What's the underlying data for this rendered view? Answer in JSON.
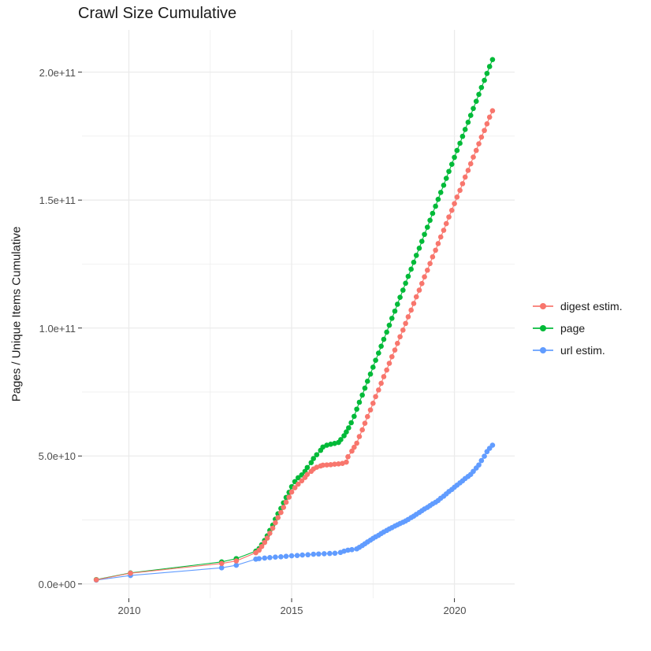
{
  "page_title": "Crawl Size Cumulative",
  "chart_data": {
    "type": "scatter",
    "title": "Crawl Size Cumulative",
    "xlabel": "",
    "ylabel": "Pages / Unique Items Cumulative",
    "legend_position": "right",
    "grid": true,
    "background": "#ffffff",
    "gridline_color": "#ebebeb",
    "tick_color": "#333333",
    "value_unit": "1e9 pages/items (values below are billions)",
    "x_domain": [
      2008.56,
      2021.85
    ],
    "y_domain_e9": [
      -5.6,
      216.5
    ],
    "x_tick_labels": [
      "2010",
      "2015",
      "2020"
    ],
    "x_tick_years": [
      2010,
      2015,
      2020
    ],
    "x_minor_years": [
      2012.5,
      2017.5
    ],
    "y_tick_labels": [
      "0.0e+00",
      "5.0e+10",
      "1.0e+11",
      "1.5e+11",
      "2.0e+11"
    ],
    "y_tick_values_e9": [
      0,
      50,
      100,
      150,
      200
    ],
    "y_minor_values_e9": [
      25,
      75,
      125,
      175
    ],
    "series": [
      {
        "name": "digest estim.",
        "color": "#F8766D",
        "points": [
          [
            2009.0,
            1.6
          ],
          [
            2010.05,
            4.2
          ],
          [
            2012.85,
            8.0
          ],
          [
            2013.3,
            9.0
          ],
          [
            2013.9,
            12.2
          ],
          [
            2014.0,
            13.2
          ],
          [
            2014.08,
            14.6
          ],
          [
            2014.17,
            16.2
          ],
          [
            2014.25,
            17.9
          ],
          [
            2014.33,
            19.8
          ],
          [
            2014.42,
            21.8
          ],
          [
            2014.5,
            23.9
          ],
          [
            2014.58,
            25.9
          ],
          [
            2014.67,
            27.9
          ],
          [
            2014.75,
            29.9
          ],
          [
            2014.83,
            31.9
          ],
          [
            2014.92,
            33.9
          ],
          [
            2015.0,
            35.9
          ],
          [
            2015.1,
            37.6
          ],
          [
            2015.2,
            39.0
          ],
          [
            2015.31,
            40.3
          ],
          [
            2015.41,
            41.6
          ],
          [
            2015.48,
            42.8
          ],
          [
            2015.6,
            44.0
          ],
          [
            2015.67,
            44.9
          ],
          [
            2015.77,
            45.6
          ],
          [
            2015.89,
            46.1
          ],
          [
            2015.96,
            46.4
          ],
          [
            2016.08,
            46.5
          ],
          [
            2016.2,
            46.6
          ],
          [
            2016.32,
            46.8
          ],
          [
            2016.44,
            46.9
          ],
          [
            2016.56,
            47.1
          ],
          [
            2016.68,
            47.6
          ],
          [
            2016.73,
            49.7
          ],
          [
            2016.85,
            51.9
          ],
          [
            2016.92,
            53.4
          ],
          [
            2017.0,
            55.0
          ],
          [
            2017.08,
            57.6
          ],
          [
            2017.17,
            60.2
          ],
          [
            2017.25,
            62.8
          ],
          [
            2017.33,
            65.4
          ],
          [
            2017.42,
            68.0
          ],
          [
            2017.5,
            70.6
          ],
          [
            2017.58,
            73.2
          ],
          [
            2017.67,
            75.8
          ],
          [
            2017.75,
            78.4
          ],
          [
            2017.83,
            81.0
          ],
          [
            2017.92,
            83.6
          ],
          [
            2018.0,
            86.2
          ],
          [
            2018.08,
            88.8
          ],
          [
            2018.17,
            91.4
          ],
          [
            2018.25,
            94.0
          ],
          [
            2018.33,
            96.6
          ],
          [
            2018.42,
            99.2
          ],
          [
            2018.5,
            101.8
          ],
          [
            2018.58,
            104.4
          ],
          [
            2018.67,
            107.0
          ],
          [
            2018.75,
            109.6
          ],
          [
            2018.83,
            112.2
          ],
          [
            2018.92,
            114.8
          ],
          [
            2019.0,
            117.4
          ],
          [
            2019.08,
            120.0
          ],
          [
            2019.17,
            122.6
          ],
          [
            2019.25,
            125.2
          ],
          [
            2019.33,
            127.8
          ],
          [
            2019.42,
            130.4
          ],
          [
            2019.5,
            133.0
          ],
          [
            2019.58,
            135.6
          ],
          [
            2019.67,
            138.2
          ],
          [
            2019.75,
            140.8
          ],
          [
            2019.83,
            143.4
          ],
          [
            2019.92,
            146.0
          ],
          [
            2020.0,
            148.6
          ],
          [
            2020.08,
            151.2
          ],
          [
            2020.17,
            153.8
          ],
          [
            2020.25,
            156.4
          ],
          [
            2020.33,
            159.0
          ],
          [
            2020.42,
            161.6
          ],
          [
            2020.5,
            164.2
          ],
          [
            2020.58,
            166.8
          ],
          [
            2020.67,
            169.4
          ],
          [
            2020.75,
            172.0
          ],
          [
            2020.83,
            174.6
          ],
          [
            2020.92,
            177.2
          ],
          [
            2021.0,
            179.8
          ],
          [
            2021.08,
            182.4
          ],
          [
            2021.17,
            184.9
          ]
        ]
      },
      {
        "name": "page",
        "color": "#00BA38",
        "points": [
          [
            2009.0,
            1.7
          ],
          [
            2010.05,
            4.3
          ],
          [
            2012.85,
            8.6
          ],
          [
            2013.3,
            9.9
          ],
          [
            2013.9,
            12.8
          ],
          [
            2014.0,
            13.8
          ],
          [
            2014.08,
            15.3
          ],
          [
            2014.17,
            17.0
          ],
          [
            2014.25,
            18.8
          ],
          [
            2014.33,
            20.9
          ],
          [
            2014.42,
            23.0
          ],
          [
            2014.5,
            25.3
          ],
          [
            2014.58,
            27.4
          ],
          [
            2014.67,
            29.5
          ],
          [
            2014.75,
            31.7
          ],
          [
            2014.83,
            33.8
          ],
          [
            2014.92,
            35.8
          ],
          [
            2015.0,
            38.0
          ],
          [
            2015.1,
            40.0
          ],
          [
            2015.2,
            41.5
          ],
          [
            2015.31,
            42.6
          ],
          [
            2015.41,
            44.0
          ],
          [
            2015.48,
            45.5
          ],
          [
            2015.6,
            47.4
          ],
          [
            2015.67,
            49.0
          ],
          [
            2015.77,
            50.5
          ],
          [
            2015.89,
            52.2
          ],
          [
            2015.96,
            53.5
          ],
          [
            2016.08,
            54.2
          ],
          [
            2016.2,
            54.6
          ],
          [
            2016.32,
            54.9
          ],
          [
            2016.44,
            55.3
          ],
          [
            2016.51,
            56.4
          ],
          [
            2016.61,
            57.9
          ],
          [
            2016.68,
            59.4
          ],
          [
            2016.75,
            61.0
          ],
          [
            2016.83,
            63.0
          ],
          [
            2016.92,
            65.5
          ],
          [
            2017.0,
            68.3
          ],
          [
            2017.08,
            71.0
          ],
          [
            2017.17,
            73.8
          ],
          [
            2017.25,
            76.5
          ],
          [
            2017.33,
            79.2
          ],
          [
            2017.42,
            82.0
          ],
          [
            2017.5,
            84.7
          ],
          [
            2017.58,
            87.4
          ],
          [
            2017.67,
            90.2
          ],
          [
            2017.75,
            92.9
          ],
          [
            2017.83,
            95.6
          ],
          [
            2017.92,
            98.4
          ],
          [
            2018.0,
            101.1
          ],
          [
            2018.08,
            103.8
          ],
          [
            2018.17,
            106.6
          ],
          [
            2018.25,
            109.3
          ],
          [
            2018.33,
            112.0
          ],
          [
            2018.42,
            114.8
          ],
          [
            2018.5,
            117.5
          ],
          [
            2018.58,
            120.2
          ],
          [
            2018.67,
            123.0
          ],
          [
            2018.75,
            125.7
          ],
          [
            2018.83,
            128.4
          ],
          [
            2018.92,
            131.2
          ],
          [
            2019.0,
            133.9
          ],
          [
            2019.08,
            136.6
          ],
          [
            2019.17,
            139.4
          ],
          [
            2019.25,
            142.1
          ],
          [
            2019.33,
            144.8
          ],
          [
            2019.42,
            147.6
          ],
          [
            2019.5,
            150.3
          ],
          [
            2019.58,
            153.0
          ],
          [
            2019.67,
            155.8
          ],
          [
            2019.75,
            158.5
          ],
          [
            2019.83,
            161.2
          ],
          [
            2019.92,
            164.0
          ],
          [
            2020.0,
            166.7
          ],
          [
            2020.08,
            169.4
          ],
          [
            2020.17,
            172.2
          ],
          [
            2020.25,
            174.9
          ],
          [
            2020.33,
            177.6
          ],
          [
            2020.42,
            180.4
          ],
          [
            2020.5,
            183.1
          ],
          [
            2020.58,
            185.8
          ],
          [
            2020.67,
            188.6
          ],
          [
            2020.75,
            191.3
          ],
          [
            2020.83,
            194.0
          ],
          [
            2020.92,
            196.8
          ],
          [
            2021.0,
            199.5
          ],
          [
            2021.08,
            202.2
          ],
          [
            2021.17,
            204.9
          ]
        ]
      },
      {
        "name": "url estim.",
        "color": "#619CFF",
        "points": [
          [
            2009.0,
            1.5
          ],
          [
            2010.05,
            3.3
          ],
          [
            2012.85,
            6.3
          ],
          [
            2013.3,
            7.3
          ],
          [
            2013.9,
            9.7
          ],
          [
            2014.0,
            9.9
          ],
          [
            2014.17,
            10.1
          ],
          [
            2014.33,
            10.3
          ],
          [
            2014.5,
            10.5
          ],
          [
            2014.67,
            10.6
          ],
          [
            2014.83,
            10.8
          ],
          [
            2015.0,
            11.0
          ],
          [
            2015.17,
            11.1
          ],
          [
            2015.33,
            11.3
          ],
          [
            2015.5,
            11.4
          ],
          [
            2015.67,
            11.6
          ],
          [
            2015.83,
            11.7
          ],
          [
            2016.0,
            11.8
          ],
          [
            2016.17,
            11.9
          ],
          [
            2016.33,
            12.0
          ],
          [
            2016.5,
            12.3
          ],
          [
            2016.61,
            12.8
          ],
          [
            2016.73,
            13.2
          ],
          [
            2016.85,
            13.4
          ],
          [
            2017.0,
            13.7
          ],
          [
            2017.08,
            14.3
          ],
          [
            2017.17,
            15.0
          ],
          [
            2017.25,
            15.7
          ],
          [
            2017.33,
            16.4
          ],
          [
            2017.42,
            17.1
          ],
          [
            2017.5,
            17.8
          ],
          [
            2017.58,
            18.4
          ],
          [
            2017.67,
            19.0
          ],
          [
            2017.75,
            19.7
          ],
          [
            2017.83,
            20.3
          ],
          [
            2017.92,
            20.9
          ],
          [
            2018.0,
            21.5
          ],
          [
            2018.08,
            22.0
          ],
          [
            2018.17,
            22.6
          ],
          [
            2018.25,
            23.1
          ],
          [
            2018.33,
            23.6
          ],
          [
            2018.42,
            24.1
          ],
          [
            2018.5,
            24.6
          ],
          [
            2018.58,
            25.2
          ],
          [
            2018.67,
            25.9
          ],
          [
            2018.75,
            26.5
          ],
          [
            2018.83,
            27.2
          ],
          [
            2018.92,
            27.9
          ],
          [
            2019.0,
            28.6
          ],
          [
            2019.08,
            29.3
          ],
          [
            2019.17,
            29.9
          ],
          [
            2019.25,
            30.6
          ],
          [
            2019.33,
            31.3
          ],
          [
            2019.42,
            31.9
          ],
          [
            2019.5,
            32.6
          ],
          [
            2019.58,
            33.5
          ],
          [
            2019.67,
            34.3
          ],
          [
            2019.75,
            35.2
          ],
          [
            2019.83,
            36.1
          ],
          [
            2019.92,
            36.9
          ],
          [
            2020.0,
            37.8
          ],
          [
            2020.08,
            38.6
          ],
          [
            2020.17,
            39.5
          ],
          [
            2020.25,
            40.3
          ],
          [
            2020.33,
            41.2
          ],
          [
            2020.42,
            42.0
          ],
          [
            2020.5,
            42.8
          ],
          [
            2020.58,
            44.0
          ],
          [
            2020.67,
            45.3
          ],
          [
            2020.75,
            46.5
          ],
          [
            2020.83,
            48.2
          ],
          [
            2020.92,
            49.9
          ],
          [
            2021.0,
            51.7
          ],
          [
            2021.08,
            53.0
          ],
          [
            2021.17,
            54.2
          ]
        ]
      }
    ]
  }
}
